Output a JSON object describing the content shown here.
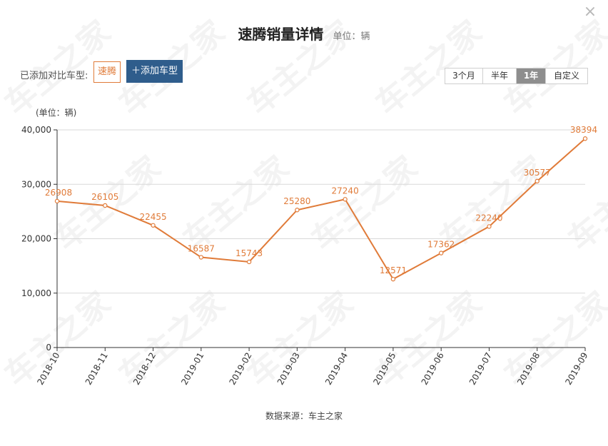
{
  "header": {
    "title": "速腾销量详情",
    "unit": "单位：辆",
    "close_icon": "close-icon"
  },
  "compare": {
    "label": "已添加对比车型:",
    "models": [
      "速腾"
    ],
    "add_button": "＋添加车型"
  },
  "ranges": {
    "options": [
      "3个月",
      "半年",
      "1年",
      "自定义"
    ],
    "selected": "1年"
  },
  "footer": {
    "source": "数据来源：车主之家"
  },
  "watermark": "车主之家",
  "colors": {
    "series": "#e07b39",
    "button": "#2f5d8c",
    "grid": "#d9d9d9"
  },
  "chart_data": {
    "type": "line",
    "ylabel": "(单位：辆)",
    "ylim": [
      0,
      40000
    ],
    "yticks": [
      "0",
      "10,000",
      "20,000",
      "30,000",
      "40,000"
    ],
    "grid": true,
    "categories": [
      "2018-10",
      "2018-11",
      "2018-12",
      "2019-01",
      "2019-02",
      "2019-03",
      "2019-04",
      "2019-05",
      "2019-06",
      "2019-07",
      "2019-08",
      "2019-09"
    ],
    "series": [
      {
        "values": [
          26908,
          26105,
          22455,
          16587,
          15743,
          25280,
          27240,
          12571,
          17362,
          22240,
          30577,
          38394
        ],
        "labels": [
          "26908",
          "26105",
          "22455",
          "16587",
          "15743",
          "25280",
          "27240",
          "12571",
          "17362",
          "22240",
          "30577",
          "38394"
        ]
      }
    ]
  }
}
